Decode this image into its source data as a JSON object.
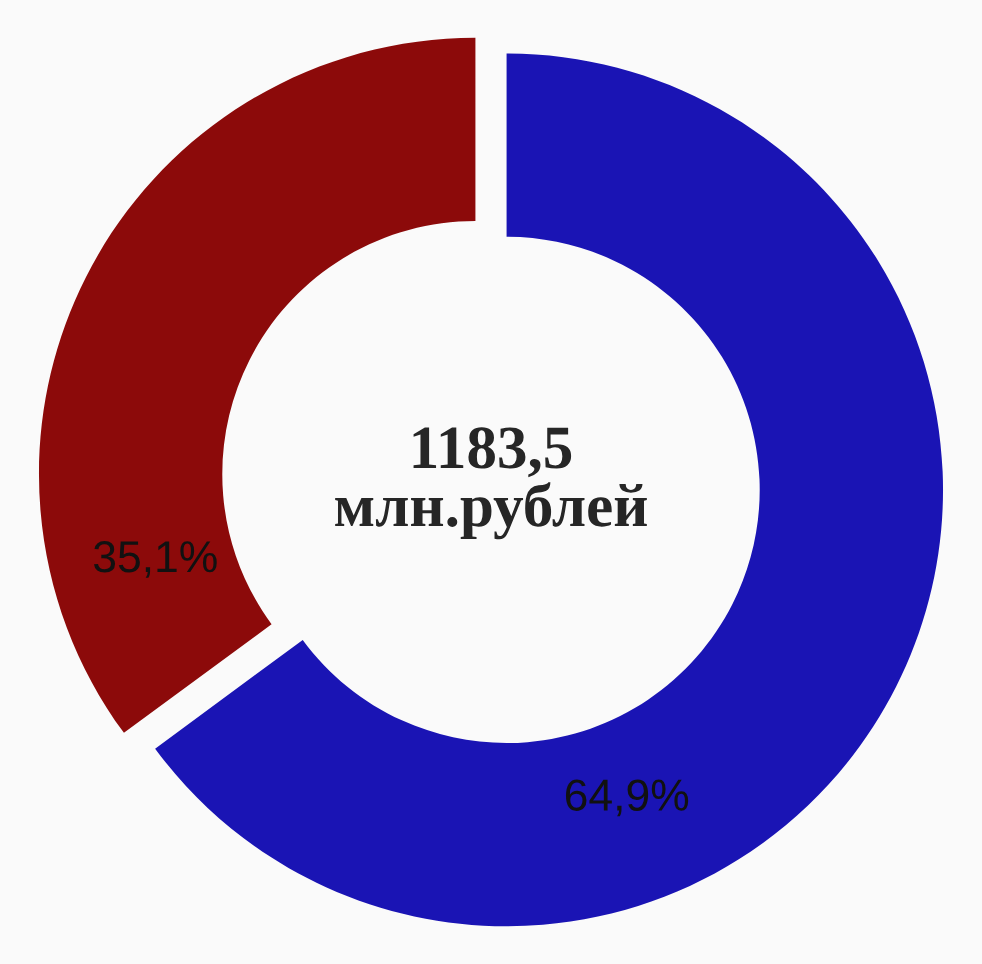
{
  "chart_data": {
    "type": "donut",
    "categories": [
      null,
      null
    ],
    "values": [
      64.9,
      35.1
    ],
    "colors": [
      "#1a14b4",
      "#8c0a0a"
    ],
    "value_labels": [
      "64,9%",
      "35,1%"
    ],
    "annotations": [
      "1183,5",
      "млн.рублей"
    ],
    "legend": false
  }
}
